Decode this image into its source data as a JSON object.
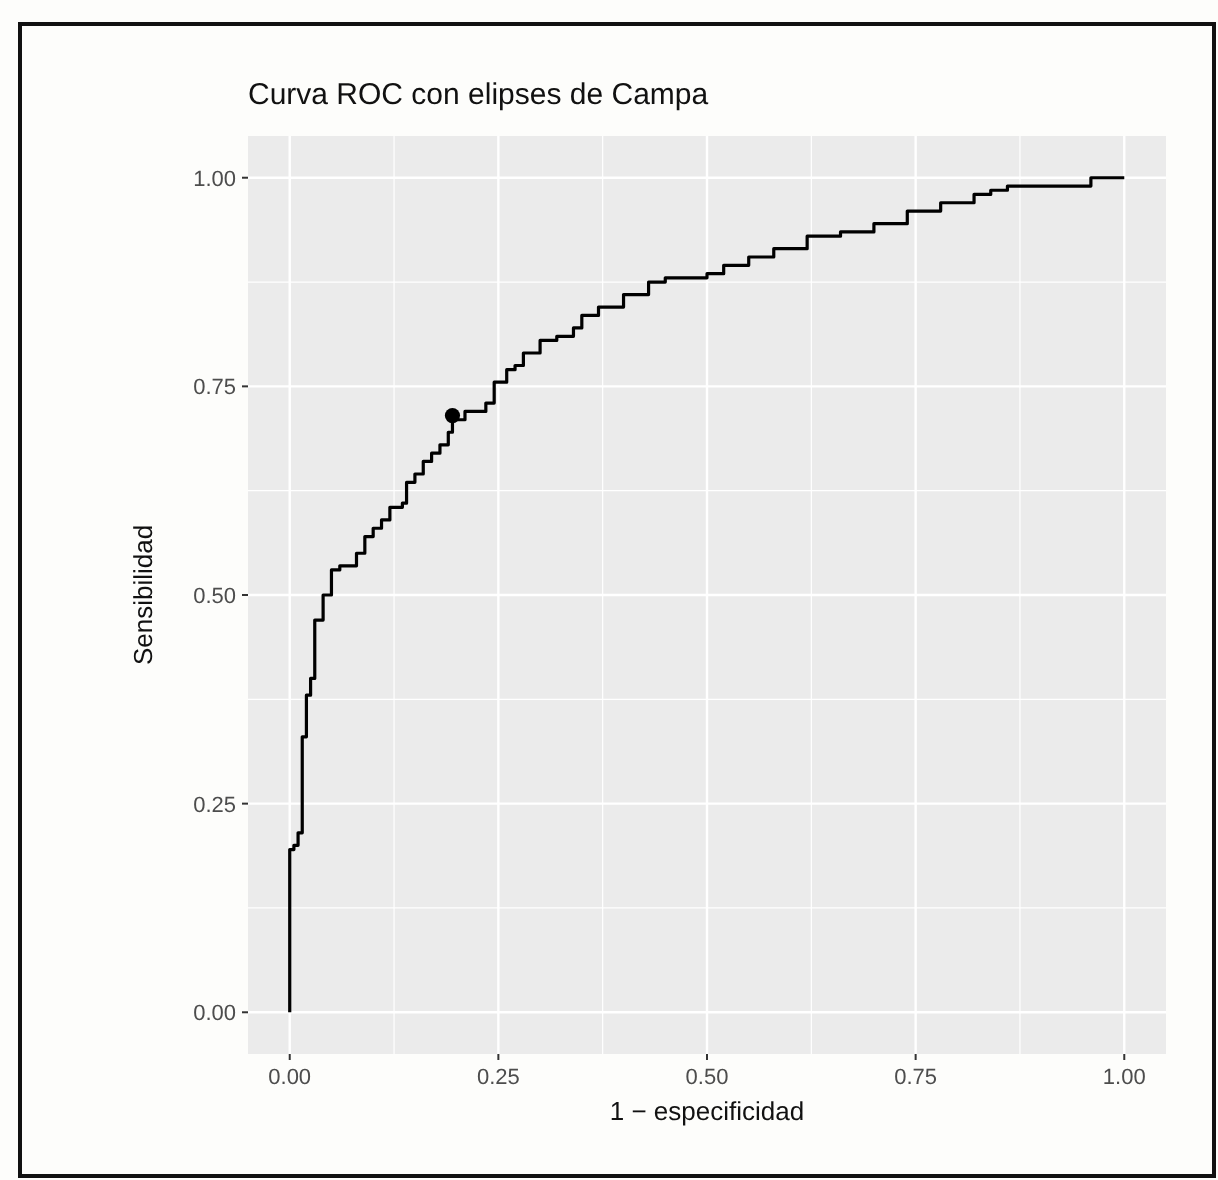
{
  "chart_data": {
    "type": "step",
    "title": "Curva ROC con elipses de Campa",
    "xlabel": "1 − especificidad",
    "ylabel": "Sensibilidad",
    "xlim": [
      -0.05,
      1.05
    ],
    "ylim": [
      -0.05,
      1.05
    ],
    "xticks": [
      {
        "value": 0,
        "label": "0.00"
      },
      {
        "value": 0.25,
        "label": "0.25"
      },
      {
        "value": 0.5,
        "label": "0.50"
      },
      {
        "value": 0.75,
        "label": "0.75"
      },
      {
        "value": 1,
        "label": "1.00"
      }
    ],
    "yticks": [
      {
        "value": 0,
        "label": "0.00"
      },
      {
        "value": 0.25,
        "label": "0.25"
      },
      {
        "value": 0.5,
        "label": "0.50"
      },
      {
        "value": 0.75,
        "label": "0.75"
      },
      {
        "value": 1,
        "label": "1.00"
      }
    ],
    "grid": true,
    "series": [
      {
        "color": "#000000",
        "x": [
          0,
          0,
          0.005,
          0.01,
          0.015,
          0.015,
          0.02,
          0.02,
          0.025,
          0.03,
          0.04,
          0.04,
          0.05,
          0.05,
          0.06,
          0.08,
          0.09,
          0.1,
          0.11,
          0.12,
          0.135,
          0.14,
          0.15,
          0.16,
          0.17,
          0.18,
          0.19,
          0.195,
          0.21,
          0.22,
          0.235,
          0.245,
          0.26,
          0.27,
          0.28,
          0.3,
          0.32,
          0.34,
          0.35,
          0.37,
          0.4,
          0.43,
          0.45,
          0.5,
          0.52,
          0.55,
          0.58,
          0.62,
          0.66,
          0.7,
          0.74,
          0.78,
          0.82,
          0.84,
          0.86,
          0.95,
          0.96,
          1
        ],
        "values": [
          0,
          0.195,
          0.2,
          0.215,
          0.22,
          0.33,
          0.34,
          0.38,
          0.4,
          0.47,
          0.48,
          0.5,
          0.5,
          0.53,
          0.535,
          0.55,
          0.57,
          0.58,
          0.59,
          0.605,
          0.61,
          0.635,
          0.645,
          0.66,
          0.67,
          0.68,
          0.695,
          0.71,
          0.72,
          0.72,
          0.73,
          0.755,
          0.77,
          0.775,
          0.79,
          0.805,
          0.81,
          0.82,
          0.835,
          0.845,
          0.86,
          0.875,
          0.88,
          0.885,
          0.895,
          0.905,
          0.915,
          0.93,
          0.935,
          0.945,
          0.96,
          0.97,
          0.98,
          0.985,
          0.99,
          0.99,
          1,
          1
        ]
      },
      {
        "type": "scatter",
        "color": "#000000",
        "marker": "circle",
        "x": [
          0.195
        ],
        "values": [
          0.715
        ]
      }
    ]
  }
}
